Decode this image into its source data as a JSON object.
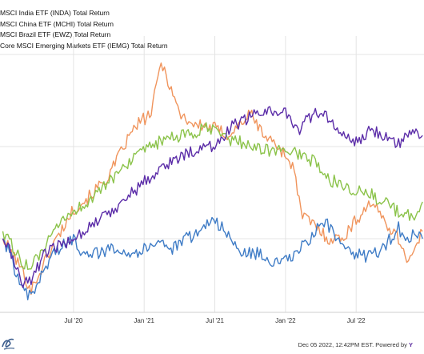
{
  "legend": [
    {
      "label": "MSCI India ETF (INDA) Total Return",
      "color": "#f0945c"
    },
    {
      "label": "MSCI China ETF (MCHI) Total Return",
      "color": "#3f7cc6"
    },
    {
      "label": "MSCI Brazil ETF (EWZ) Total Return",
      "color": "#8bc34a"
    },
    {
      "label": "Core MSCI Emerging Markets ETF (IEMG) Total Return",
      "color": "#5b2ca8"
    }
  ],
  "footer": {
    "text": "Dec 05 2022, 12:42PM EST.  Powered by ",
    "brand": "Y"
  },
  "chart_data": {
    "type": "line",
    "x_ticks": [
      "Jul '20",
      "Jan '21",
      "Jul '21",
      "Jan '22",
      "Jul '22"
    ],
    "grid": true,
    "series": [
      {
        "name": "MSCI India ETF (INDA) Total Return",
        "color": "#f0945c",
        "points": [
          [
            2020.0,
            1.0
          ],
          [
            2020.13,
            0.92
          ],
          [
            2020.2,
            0.86
          ],
          [
            2020.25,
            0.9
          ],
          [
            2020.35,
            0.98
          ],
          [
            2020.5,
            1.08
          ],
          [
            2020.6,
            1.11
          ],
          [
            2020.75,
            1.17
          ],
          [
            2020.87,
            1.26
          ],
          [
            2020.95,
            1.31
          ],
          [
            2021.05,
            1.34
          ],
          [
            2021.12,
            1.48
          ],
          [
            2021.18,
            1.42
          ],
          [
            2021.25,
            1.34
          ],
          [
            2021.35,
            1.31
          ],
          [
            2021.5,
            1.3
          ],
          [
            2021.6,
            1.28
          ],
          [
            2021.75,
            1.34
          ],
          [
            2021.85,
            1.28
          ],
          [
            2021.95,
            1.25
          ],
          [
            2022.05,
            1.2
          ],
          [
            2022.12,
            1.06
          ],
          [
            2022.2,
            1.04
          ],
          [
            2022.3,
            1.0
          ],
          [
            2022.4,
            1.0
          ],
          [
            2022.5,
            1.05
          ],
          [
            2022.6,
            1.1
          ],
          [
            2022.68,
            1.06
          ],
          [
            2022.8,
            1.0
          ],
          [
            2022.87,
            0.94
          ],
          [
            2022.92,
            0.97
          ],
          [
            2022.97,
            1.02
          ]
        ]
      },
      {
        "name": "MSCI China ETF (MCHI) Total Return",
        "color": "#3f7cc6",
        "points": [
          [
            2020.0,
            1.0
          ],
          [
            2020.06,
            0.95
          ],
          [
            2020.13,
            0.86
          ],
          [
            2020.2,
            0.84
          ],
          [
            2020.25,
            0.88
          ],
          [
            2020.35,
            0.96
          ],
          [
            2020.5,
            1.0
          ],
          [
            2020.55,
            0.97
          ],
          [
            2020.7,
            0.96
          ],
          [
            2020.8,
            0.98
          ],
          [
            2020.9,
            0.96
          ],
          [
            2021.0,
            0.97
          ],
          [
            2021.1,
            1.0
          ],
          [
            2021.2,
            0.97
          ],
          [
            2021.3,
            1.0
          ],
          [
            2021.4,
            1.02
          ],
          [
            2021.48,
            1.06
          ],
          [
            2021.55,
            1.03
          ],
          [
            2021.62,
            0.99
          ],
          [
            2021.7,
            0.96
          ],
          [
            2021.8,
            0.96
          ],
          [
            2021.95,
            0.93
          ],
          [
            2022.05,
            0.95
          ],
          [
            2022.15,
            0.99
          ],
          [
            2022.2,
            1.01
          ],
          [
            2022.25,
            1.05
          ],
          [
            2022.32,
            1.03
          ],
          [
            2022.4,
            0.97
          ],
          [
            2022.5,
            0.96
          ],
          [
            2022.6,
            0.95
          ],
          [
            2022.7,
            0.98
          ],
          [
            2022.8,
            1.03
          ],
          [
            2022.85,
            0.98
          ],
          [
            2022.9,
            1.01
          ],
          [
            2022.97,
            1.0
          ]
        ]
      },
      {
        "name": "MSCI Brazil ETF (EWZ) Total Return",
        "color": "#8bc34a",
        "points": [
          [
            2020.0,
            1.02
          ],
          [
            2020.13,
            0.94
          ],
          [
            2020.2,
            0.92
          ],
          [
            2020.3,
            0.98
          ],
          [
            2020.45,
            1.06
          ],
          [
            2020.6,
            1.1
          ],
          [
            2020.75,
            1.15
          ],
          [
            2020.85,
            1.2
          ],
          [
            2020.95,
            1.22
          ],
          [
            2021.05,
            1.25
          ],
          [
            2021.15,
            1.27
          ],
          [
            2021.3,
            1.28
          ],
          [
            2021.45,
            1.3
          ],
          [
            2021.6,
            1.27
          ],
          [
            2021.7,
            1.26
          ],
          [
            2021.85,
            1.24
          ],
          [
            2022.0,
            1.24
          ],
          [
            2022.1,
            1.23
          ],
          [
            2022.2,
            1.21
          ],
          [
            2022.3,
            1.16
          ],
          [
            2022.4,
            1.15
          ],
          [
            2022.5,
            1.13
          ],
          [
            2022.6,
            1.12
          ],
          [
            2022.7,
            1.1
          ],
          [
            2022.8,
            1.07
          ],
          [
            2022.9,
            1.06
          ],
          [
            2022.97,
            1.1
          ]
        ]
      },
      {
        "name": "Core MSCI Emerging Markets ETF (IEMG) Total Return",
        "color": "#5b2ca8",
        "points": [
          [
            2020.0,
            1.0
          ],
          [
            2020.06,
            0.96
          ],
          [
            2020.13,
            0.88
          ],
          [
            2020.2,
            0.89
          ],
          [
            2020.3,
            0.96
          ],
          [
            2020.45,
            0.99
          ],
          [
            2020.6,
            1.03
          ],
          [
            2020.75,
            1.07
          ],
          [
            2020.9,
            1.12
          ],
          [
            2021.05,
            1.17
          ],
          [
            2021.15,
            1.2
          ],
          [
            2021.25,
            1.22
          ],
          [
            2021.35,
            1.24
          ],
          [
            2021.5,
            1.25
          ],
          [
            2021.6,
            1.3
          ],
          [
            2021.7,
            1.32
          ],
          [
            2021.8,
            1.34
          ],
          [
            2021.9,
            1.35
          ],
          [
            2022.0,
            1.34
          ],
          [
            2022.1,
            1.3
          ],
          [
            2022.2,
            1.34
          ],
          [
            2022.3,
            1.33
          ],
          [
            2022.4,
            1.28
          ],
          [
            2022.5,
            1.26
          ],
          [
            2022.6,
            1.3
          ],
          [
            2022.7,
            1.28
          ],
          [
            2022.8,
            1.26
          ],
          [
            2022.9,
            1.29
          ],
          [
            2022.97,
            1.28
          ]
        ]
      }
    ]
  }
}
